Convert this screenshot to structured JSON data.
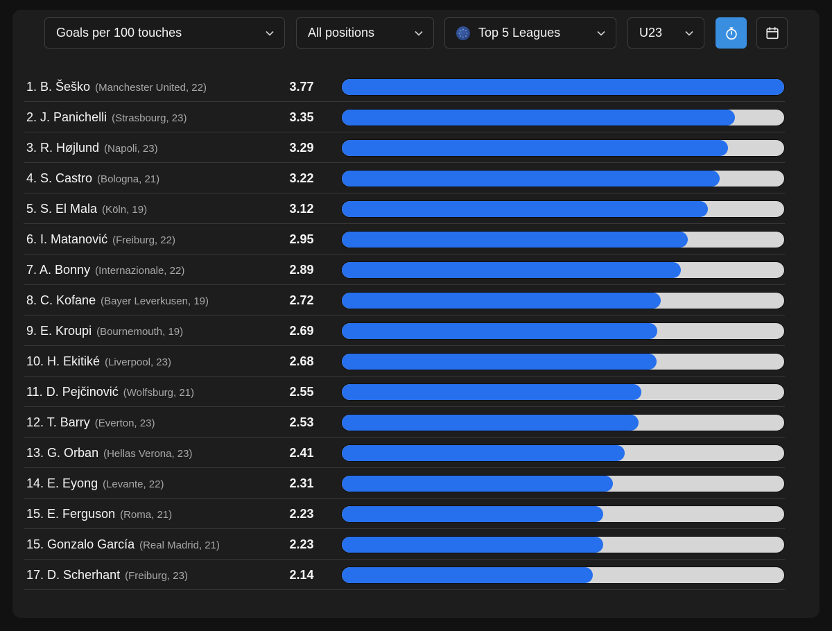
{
  "controls": {
    "metric": "Goals per 100 touches",
    "position": "All positions",
    "league": "Top 5 Leagues",
    "age": "U23"
  },
  "chart_data": {
    "type": "bar",
    "orientation": "horizontal",
    "xlim": [
      0,
      3.77
    ],
    "rows": [
      {
        "rank": "1.",
        "player": "B. Šeško",
        "meta": "(Manchester United, 22)",
        "value": 3.77,
        "label": "3.77"
      },
      {
        "rank": "2.",
        "player": "J. Panichelli",
        "meta": "(Strasbourg, 23)",
        "value": 3.35,
        "label": "3.35"
      },
      {
        "rank": "3.",
        "player": "R. Højlund",
        "meta": "(Napoli, 23)",
        "value": 3.29,
        "label": "3.29"
      },
      {
        "rank": "4.",
        "player": "S. Castro",
        "meta": "(Bologna, 21)",
        "value": 3.22,
        "label": "3.22"
      },
      {
        "rank": "5.",
        "player": "S. El Mala",
        "meta": "(Köln, 19)",
        "value": 3.12,
        "label": "3.12"
      },
      {
        "rank": "6.",
        "player": "I. Matanović",
        "meta": "(Freiburg, 22)",
        "value": 2.95,
        "label": "2.95"
      },
      {
        "rank": "7.",
        "player": "A. Bonny",
        "meta": "(Internazionale, 22)",
        "value": 2.89,
        "label": "2.89"
      },
      {
        "rank": "8.",
        "player": "C. Kofane",
        "meta": "(Bayer Leverkusen, 19)",
        "value": 2.72,
        "label": "2.72"
      },
      {
        "rank": "9.",
        "player": "E. Kroupi",
        "meta": "(Bournemouth, 19)",
        "value": 2.69,
        "label": "2.69"
      },
      {
        "rank": "10.",
        "player": "H. Ekitiké",
        "meta": "(Liverpool, 23)",
        "value": 2.68,
        "label": "2.68"
      },
      {
        "rank": "11.",
        "player": "D. Pejčinović",
        "meta": "(Wolfsburg, 21)",
        "value": 2.55,
        "label": "2.55"
      },
      {
        "rank": "12.",
        "player": "T. Barry",
        "meta": "(Everton, 23)",
        "value": 2.53,
        "label": "2.53"
      },
      {
        "rank": "13.",
        "player": "G. Orban",
        "meta": "(Hellas Verona, 23)",
        "value": 2.41,
        "label": "2.41"
      },
      {
        "rank": "14.",
        "player": "E. Eyong",
        "meta": "(Levante, 22)",
        "value": 2.31,
        "label": "2.31"
      },
      {
        "rank": "15.",
        "player": "E. Ferguson",
        "meta": "(Roma, 21)",
        "value": 2.23,
        "label": "2.23"
      },
      {
        "rank": "15.",
        "player": "Gonzalo García",
        "meta": "(Real Madrid, 21)",
        "value": 2.23,
        "label": "2.23"
      },
      {
        "rank": "17.",
        "player": "D. Scherhant",
        "meta": "(Freiburg, 23)",
        "value": 2.14,
        "label": "2.14"
      }
    ],
    "bar_color": "#2670ee",
    "track_color": "#d6d6d6"
  },
  "icons": {
    "timer": "stopwatch-icon",
    "calendar": "calendar-icon",
    "league": "globe-icon",
    "dropdown": "chevron-down-icon"
  }
}
